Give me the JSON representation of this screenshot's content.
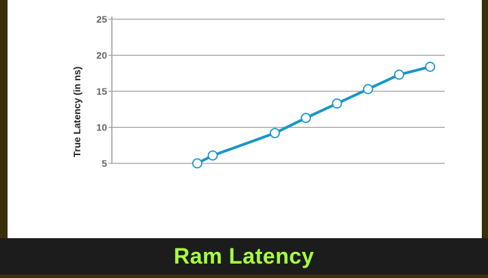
{
  "caption": "Ram Latency",
  "colors": {
    "line": "#1a96c8",
    "grid": "#9a9a9a",
    "caption_text": "#a8ff3e",
    "caption_bg": "#1c1c1c",
    "frame": "#3a2f0b"
  },
  "chart_data": {
    "type": "line",
    "title": "",
    "xlabel": "",
    "ylabel": "True Latency (in ns)",
    "ylim": [
      5,
      25
    ],
    "yticks": [
      "25",
      "20",
      "15",
      "10",
      "5"
    ],
    "grid": true,
    "series": [
      {
        "x": [
          1,
          2,
          6,
          8,
          10,
          12,
          14,
          16
        ],
        "values": [
          5.0,
          6.1,
          9.2,
          11.3,
          13.3,
          15.3,
          17.3,
          18.4
        ]
      }
    ],
    "xlim": [
      -4.5,
      16.5
    ]
  }
}
